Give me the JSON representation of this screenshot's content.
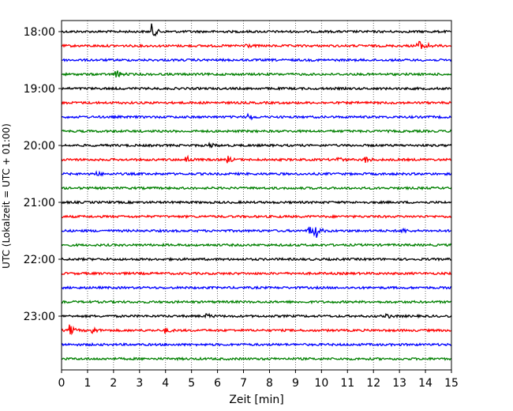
{
  "chart_data": {
    "type": "line",
    "subtype": "helicorder",
    "title": "",
    "xlabel": "Zeit  [min]",
    "ylabel": "UTC (Lokalzeit = UTC + 01:00)",
    "xlim": [
      0,
      15
    ],
    "x_ticks": [
      "0",
      "1",
      "2",
      "3",
      "4",
      "5",
      "6",
      "7",
      "8",
      "9",
      "10",
      "11",
      "12",
      "13",
      "14",
      "15"
    ],
    "y_tick_labels": [
      "18:00",
      "19:00",
      "20:00",
      "21:00",
      "22:00",
      "23:00"
    ],
    "line_interval_minutes": 15,
    "grid": {
      "x": true,
      "style": "dotted"
    },
    "colors_cycle": [
      "#000000",
      "#ff0000",
      "#0000ff",
      "#008000"
    ],
    "traces": [
      {
        "start": "18:00",
        "color": "#000000",
        "events": [
          {
            "t": 3.5,
            "amp": 9
          }
        ]
      },
      {
        "start": "18:15",
        "color": "#ff0000",
        "events": [
          {
            "t": 7.05,
            "amp": 4
          },
          {
            "t": 13.7,
            "amp": 9
          },
          {
            "t": 14.0,
            "amp": 4
          }
        ]
      },
      {
        "start": "18:30",
        "color": "#0000ff",
        "events": []
      },
      {
        "start": "18:45",
        "color": "#008000",
        "events": [
          {
            "t": 2.1,
            "amp": 6
          }
        ]
      },
      {
        "start": "19:00",
        "color": "#000000",
        "events": []
      },
      {
        "start": "19:15",
        "color": "#ff0000",
        "events": []
      },
      {
        "start": "19:30",
        "color": "#0000ff",
        "events": [
          {
            "t": 7.2,
            "amp": 4
          }
        ]
      },
      {
        "start": "19:45",
        "color": "#008000",
        "events": []
      },
      {
        "start": "20:00",
        "color": "#000000",
        "events": [
          {
            "t": 5.7,
            "amp": 3
          }
        ]
      },
      {
        "start": "20:15",
        "color": "#ff0000",
        "events": [
          {
            "t": 4.8,
            "amp": 5
          },
          {
            "t": 6.4,
            "amp": 4
          },
          {
            "t": 10.6,
            "amp": 4
          },
          {
            "t": 11.7,
            "amp": 4
          }
        ]
      },
      {
        "start": "20:30",
        "color": "#0000ff",
        "events": [
          {
            "t": 1.3,
            "amp": 4
          }
        ]
      },
      {
        "start": "20:45",
        "color": "#008000",
        "events": []
      },
      {
        "start": "21:00",
        "color": "#000000",
        "events": []
      },
      {
        "start": "21:15",
        "color": "#ff0000",
        "events": []
      },
      {
        "start": "21:30",
        "color": "#0000ff",
        "events": [
          {
            "t": 9.5,
            "amp": 7
          },
          {
            "t": 9.75,
            "amp": 11
          },
          {
            "t": 13.1,
            "amp": 3
          }
        ]
      },
      {
        "start": "21:45",
        "color": "#008000",
        "events": []
      },
      {
        "start": "22:00",
        "color": "#000000",
        "events": []
      },
      {
        "start": "22:15",
        "color": "#ff0000",
        "events": []
      },
      {
        "start": "22:30",
        "color": "#0000ff",
        "events": []
      },
      {
        "start": "22:45",
        "color": "#008000",
        "events": []
      },
      {
        "start": "23:00",
        "color": "#000000",
        "events": [
          {
            "t": 5.6,
            "amp": 3
          },
          {
            "t": 12.5,
            "amp": 3
          }
        ]
      },
      {
        "start": "23:15",
        "color": "#ff0000",
        "events": [
          {
            "t": 0.35,
            "amp": 6
          },
          {
            "t": 1.2,
            "amp": 4
          },
          {
            "t": 4.0,
            "amp": 3
          }
        ]
      },
      {
        "start": "23:30",
        "color": "#0000ff",
        "events": []
      },
      {
        "start": "23:45",
        "color": "#008000",
        "events": []
      }
    ]
  }
}
